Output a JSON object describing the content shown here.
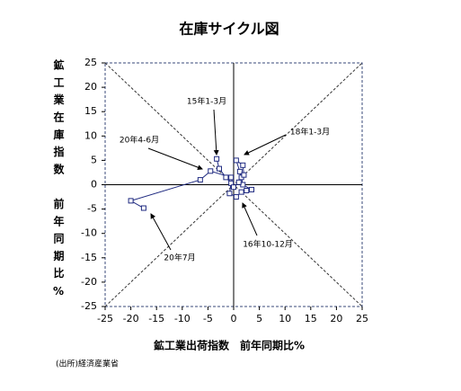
{
  "chart_data": {
    "type": "scatter-line",
    "title": "在庫サイクル図",
    "x_label": "鉱工業出荷指数　前年同期比%",
    "y_label": "鉱工業在庫指数　前年同期比%",
    "source": "(出所)経済産業省",
    "color": "#1f2a80",
    "x": [
      -3.3,
      -2.8,
      -1.5,
      -0.5,
      -0.8,
      0.5,
      1.5,
      2.5,
      3.5,
      1.8,
      1.5,
      1.2,
      0.5,
      1.8,
      2.0,
      1.0,
      0.0,
      -0.5,
      -4.5,
      -6.5,
      -20,
      -17.5
    ],
    "values": [
      5.3,
      3.3,
      1.5,
      0.3,
      -1.8,
      -2.5,
      -1.5,
      -1.2,
      -1.0,
      0,
      1.5,
      2.7,
      5.0,
      4.0,
      2.0,
      0.5,
      -0.5,
      1.5,
      2.8,
      1.0,
      -3.3,
      -4.8
    ],
    "xlim": [
      -25,
      25
    ],
    "ylim": [
      -25,
      25
    ],
    "xticks": [
      -25,
      -20,
      -15,
      -10,
      -5,
      0,
      5,
      10,
      15,
      20,
      25
    ],
    "yticks": [
      -25,
      -20,
      -15,
      -10,
      -5,
      0,
      5,
      10,
      15,
      20,
      25
    ],
    "annotations": [
      "15年1-3月",
      "18年1-3月",
      "20年4-6月",
      "16年10-12月",
      "20年7月"
    ]
  }
}
